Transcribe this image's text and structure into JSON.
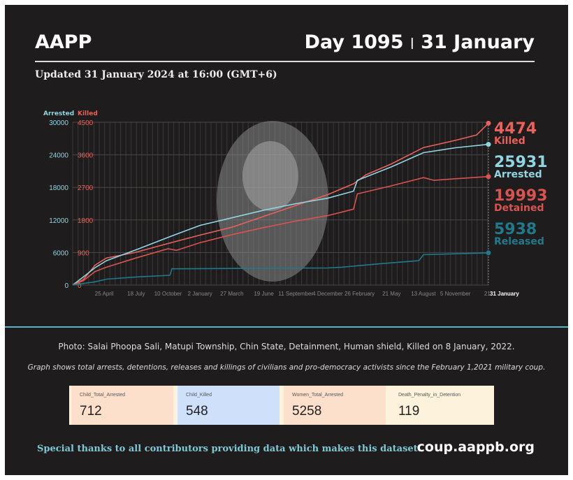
{
  "header": {
    "brand": "AAPP",
    "day": "Day 1095",
    "sep": "|",
    "date": "31 January",
    "updated": "Updated 31 January 2024 at 16:00 (GMT+6)"
  },
  "chart_data": {
    "type": "line",
    "left_axis_label": "Arrested",
    "right_axis_label": "Killed",
    "arrested_ticks": [
      0,
      6000,
      12000,
      18000,
      24000,
      30000
    ],
    "killed_ticks": [
      0,
      900,
      1800,
      2700,
      3600,
      4500
    ],
    "ylim_arrested": [
      0,
      30000
    ],
    "ylim_killed": [
      0,
      4500
    ],
    "xlim": [
      "2021-02-01",
      "2024-01-31"
    ],
    "x_tick_labels": [
      "25 April",
      "18 July",
      "10 October",
      "2 January",
      "27 March",
      "19 June",
      "11 September",
      "4 December",
      "26 February",
      "21 May",
      "13 August",
      "5 November",
      "21",
      "31 January"
    ],
    "x_tick_dates": [
      "2021-04-25",
      "2021-07-18",
      "2021-10-10",
      "2022-01-02",
      "2022-03-27",
      "2022-06-19",
      "2022-09-11",
      "2022-12-04",
      "2023-02-26",
      "2023-05-21",
      "2023-08-13",
      "2023-11-05",
      "2024-01-28",
      "2024-01-31"
    ],
    "grid": true,
    "series": [
      {
        "name": "Killed",
        "axis": "killed",
        "color": "#e8625a",
        "end_value": "4474",
        "x": [
          "2021-02-01",
          "2021-03-01",
          "2021-04-01",
          "2021-05-01",
          "2021-07-15",
          "2021-10-10",
          "2022-01-02",
          "2022-03-27",
          "2022-06-19",
          "2022-09-11",
          "2022-12-04",
          "2023-02-10",
          "2023-03-15",
          "2023-05-21",
          "2023-08-13",
          "2023-11-05",
          "2023-12-31",
          "2024-01-31"
        ],
        "y": [
          0,
          150,
          550,
          750,
          900,
          1150,
          1380,
          1600,
          1900,
          2200,
          2500,
          2800,
          3050,
          3350,
          3800,
          4000,
          4150,
          4474
        ]
      },
      {
        "name": "Arrested",
        "axis": "arrested",
        "color": "#8fd6e2",
        "end_value": "25931",
        "x": [
          "2021-02-01",
          "2021-03-01",
          "2021-04-01",
          "2021-05-01",
          "2021-07-18",
          "2021-10-10",
          "2022-01-02",
          "2022-03-27",
          "2022-06-19",
          "2022-09-11",
          "2022-12-04",
          "2023-02-10",
          "2023-02-20",
          "2023-05-21",
          "2023-08-13",
          "2023-11-05",
          "2024-01-31"
        ],
        "y": [
          0,
          1500,
          3200,
          4500,
          6500,
          8800,
          11000,
          12400,
          13800,
          15000,
          16000,
          17300,
          19300,
          21800,
          24400,
          25300,
          25931
        ]
      },
      {
        "name": "Detained",
        "axis": "arrested",
        "color": "#d9544f",
        "end_value": "19993",
        "x": [
          "2021-02-01",
          "2021-03-01",
          "2021-04-01",
          "2021-05-01",
          "2021-07-18",
          "2021-10-10",
          "2021-11-01",
          "2022-01-02",
          "2022-03-27",
          "2022-06-19",
          "2022-09-11",
          "2022-12-04",
          "2023-02-10",
          "2023-02-20",
          "2023-05-21",
          "2023-08-13",
          "2023-09-10",
          "2023-11-05",
          "2024-01-31"
        ],
        "y": [
          0,
          800,
          2500,
          3300,
          5000,
          6700,
          6400,
          7800,
          9300,
          10600,
          11800,
          12800,
          14000,
          16800,
          18300,
          19800,
          19300,
          19600,
          19993
        ]
      },
      {
        "name": "Released",
        "axis": "arrested",
        "color": "#1f7a8c",
        "end_value": "5938",
        "x": [
          "2021-02-01",
          "2021-04-01",
          "2021-05-01",
          "2021-07-18",
          "2021-10-15",
          "2021-10-20",
          "2022-06-19",
          "2022-12-04",
          "2023-01-10",
          "2023-05-03",
          "2023-08-01",
          "2023-08-13",
          "2024-01-31"
        ],
        "y": [
          0,
          600,
          1100,
          1500,
          1800,
          3000,
          3100,
          3150,
          3300,
          4000,
          4500,
          5600,
          5938
        ]
      }
    ]
  },
  "photo_caption": "Photo:  Salai Phoopa Sali, Matupi Township, Chin State, Detainment, Human shield, Killed on 8 January, 2022.",
  "note": "Graph shows total arrests, detentions, releases and killings of civilians and pro-democracy activists since the February 1,2021 military coup.",
  "kpis": [
    {
      "label": "Child_Total_Arrested",
      "value": "712",
      "color": "#fde0cc"
    },
    {
      "label": "Child_Killed",
      "value": "548",
      "color": "#cfe0fa"
    },
    {
      "label": "Women_Total_Arrested",
      "value": "5258",
      "color": "#fde0cc"
    },
    {
      "label": "Death_Penalty_in_Detention",
      "value": "119",
      "color": "#fdf3dc"
    }
  ],
  "footer": {
    "thanks": "Special thanks to all contributors providing data which makes this dataset.",
    "site": "coup.aappb.org"
  }
}
